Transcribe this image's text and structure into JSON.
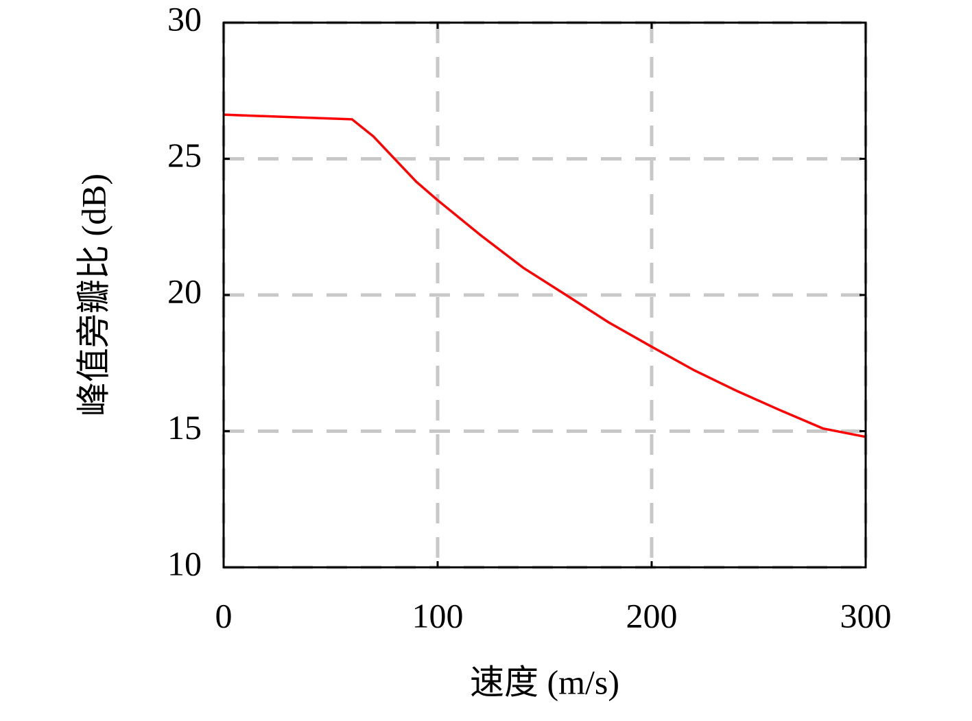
{
  "chart_data": {
    "type": "line",
    "x_label": "速度 (m/s)",
    "y_label": "峰值旁瓣比 (dB)",
    "x": [
      0,
      60,
      70,
      80,
      90,
      100,
      120,
      140,
      160,
      180,
      200,
      220,
      240,
      260,
      280,
      300
    ],
    "series": [
      {
        "color": "#ff0000",
        "values": [
          26.62,
          26.45,
          25.82,
          24.99,
          24.16,
          23.48,
          22.2,
          21.0,
          20.0,
          18.99,
          18.1,
          17.23,
          16.47,
          15.77,
          15.1,
          14.79
        ]
      }
    ],
    "xlim": [
      0,
      300
    ],
    "xticks": [
      0,
      100,
      200,
      300
    ],
    "ylim": [
      10,
      30
    ],
    "yticks": [
      10,
      15,
      20,
      25,
      30
    ],
    "grid": true
  }
}
